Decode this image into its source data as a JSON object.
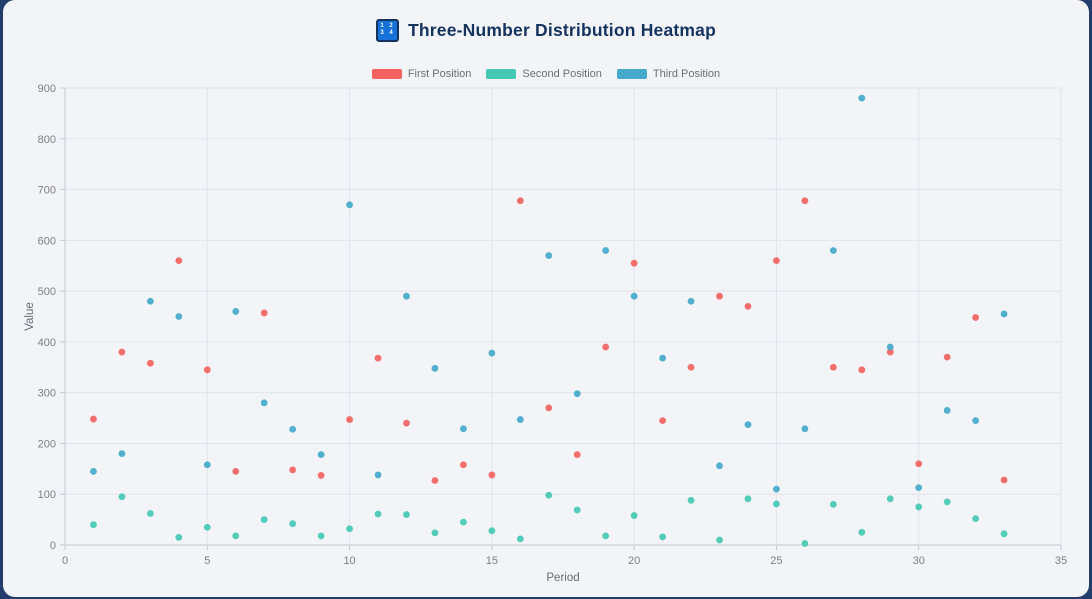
{
  "window": {
    "frame_color": "#223d6b",
    "card_background": "#f2f4f8"
  },
  "header": {
    "title": "Three-Number Distribution Heatmap",
    "icon": {
      "name": "numbers-grid-icon",
      "top_row": "1 2",
      "bottom_row": "3 4",
      "background": "#1472d8",
      "border": "#16335e"
    }
  },
  "legend": {
    "items": [
      {
        "label": "First Position",
        "color": "#f4625f"
      },
      {
        "label": "Second Position",
        "color": "#45c8b4"
      },
      {
        "label": "Third Position",
        "color": "#44a9ca"
      }
    ]
  },
  "chart_data": {
    "type": "scatter",
    "title": "Three-Number Distribution Heatmap",
    "xlabel": "Period",
    "ylabel": "Value",
    "xlim": [
      0,
      35
    ],
    "ylim": [
      0,
      900
    ],
    "x_ticks": [
      0,
      5,
      10,
      15,
      20,
      25,
      30,
      35
    ],
    "y_ticks": [
      0,
      100,
      200,
      300,
      400,
      500,
      600,
      700,
      800,
      900
    ],
    "grid": true,
    "legend_position": "top-center",
    "x": [
      1,
      2,
      3,
      4,
      5,
      6,
      7,
      8,
      9,
      10,
      11,
      12,
      13,
      14,
      15,
      16,
      17,
      18,
      19,
      20,
      21,
      22,
      23,
      24,
      25,
      26,
      27,
      28,
      29,
      30,
      31,
      32,
      33
    ],
    "series": [
      {
        "name": "First Position",
        "color": "#f4625f",
        "values": [
          248,
          380,
          358,
          560,
          345,
          145,
          457,
          148,
          137,
          247,
          368,
          240,
          127,
          158,
          138,
          678,
          270,
          178,
          390,
          555,
          245,
          350,
          490,
          470,
          560,
          678,
          350,
          345,
          380,
          160,
          370,
          448,
          128
        ]
      },
      {
        "name": "Second Position",
        "color": "#45c8b4",
        "values": [
          40,
          95,
          62,
          15,
          35,
          18,
          50,
          42,
          18,
          32,
          61,
          60,
          24,
          45,
          28,
          12,
          98,
          69,
          18,
          58,
          16,
          88,
          10,
          91,
          81,
          3,
          80,
          25,
          91,
          75,
          85,
          52,
          22
        ]
      },
      {
        "name": "Third Position",
        "color": "#44a9ca",
        "values": [
          145,
          180,
          480,
          450,
          158,
          460,
          280,
          228,
          178,
          670,
          138,
          490,
          348,
          229,
          378,
          247,
          570,
          298,
          580,
          490,
          368,
          480,
          156,
          237,
          110,
          229,
          580,
          880,
          390,
          113,
          265,
          245,
          455
        ]
      }
    ],
    "style": {
      "grid_color": "#e2e4e9",
      "axis_color": "#c6c9d0",
      "tick_label_color": "#7b7f87",
      "axis_title_color": "#666a70",
      "point_radius": 3.4
    }
  }
}
